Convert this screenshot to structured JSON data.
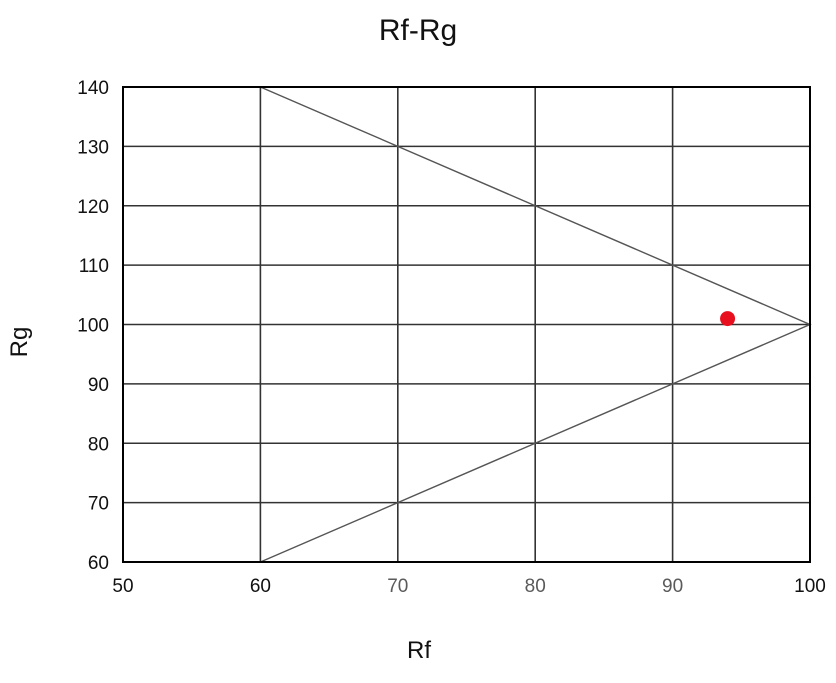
{
  "chart_data": {
    "type": "scatter",
    "title": "Rf-Rg",
    "xlabel": "Rf",
    "ylabel": "Rg",
    "xlim": [
      50,
      100
    ],
    "ylim": [
      60,
      140
    ],
    "xticks": [
      50,
      60,
      70,
      80,
      90,
      100
    ],
    "yticks": [
      60,
      70,
      80,
      90,
      100,
      110,
      120,
      130,
      140
    ],
    "grid": true,
    "gamut_boundary": [
      {
        "x": 60,
        "y": 140
      },
      {
        "x": 100,
        "y": 100
      },
      {
        "x": 60,
        "y": 60
      }
    ],
    "points": [
      {
        "x": 94,
        "y": 101
      }
    ],
    "colors": {
      "grid": "#333333",
      "boundary": "#555555",
      "point": "#e8101e",
      "frame": "#000000"
    }
  }
}
